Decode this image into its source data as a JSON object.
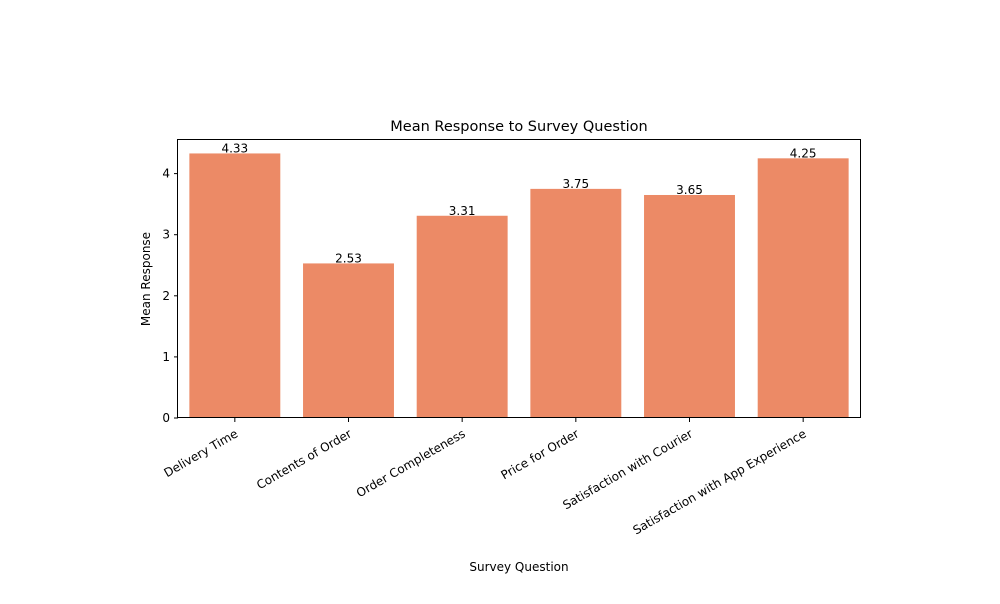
{
  "chart_data": {
    "type": "bar",
    "title": "Mean Response to Survey Question",
    "xlabel": "Survey Question",
    "ylabel": "Mean Response",
    "categories": [
      "Delivery Time",
      "Contents of Order",
      "Order Completeness",
      "Price for Order",
      "Satisfaction with Courier",
      "Satisfaction with App Experience"
    ],
    "values": [
      4.33,
      2.53,
      3.31,
      3.75,
      3.65,
      4.25
    ],
    "value_labels": [
      "4.33",
      "2.53",
      "3.31",
      "3.75",
      "3.65",
      "4.25"
    ],
    "ylim": [
      0,
      4.55
    ],
    "yticks": [
      0,
      1,
      2,
      3,
      4
    ],
    "ytick_labels": [
      "0",
      "1",
      "2",
      "3",
      "4"
    ],
    "grid": false,
    "legend": "none",
    "bar_color": "#ec8a66"
  }
}
